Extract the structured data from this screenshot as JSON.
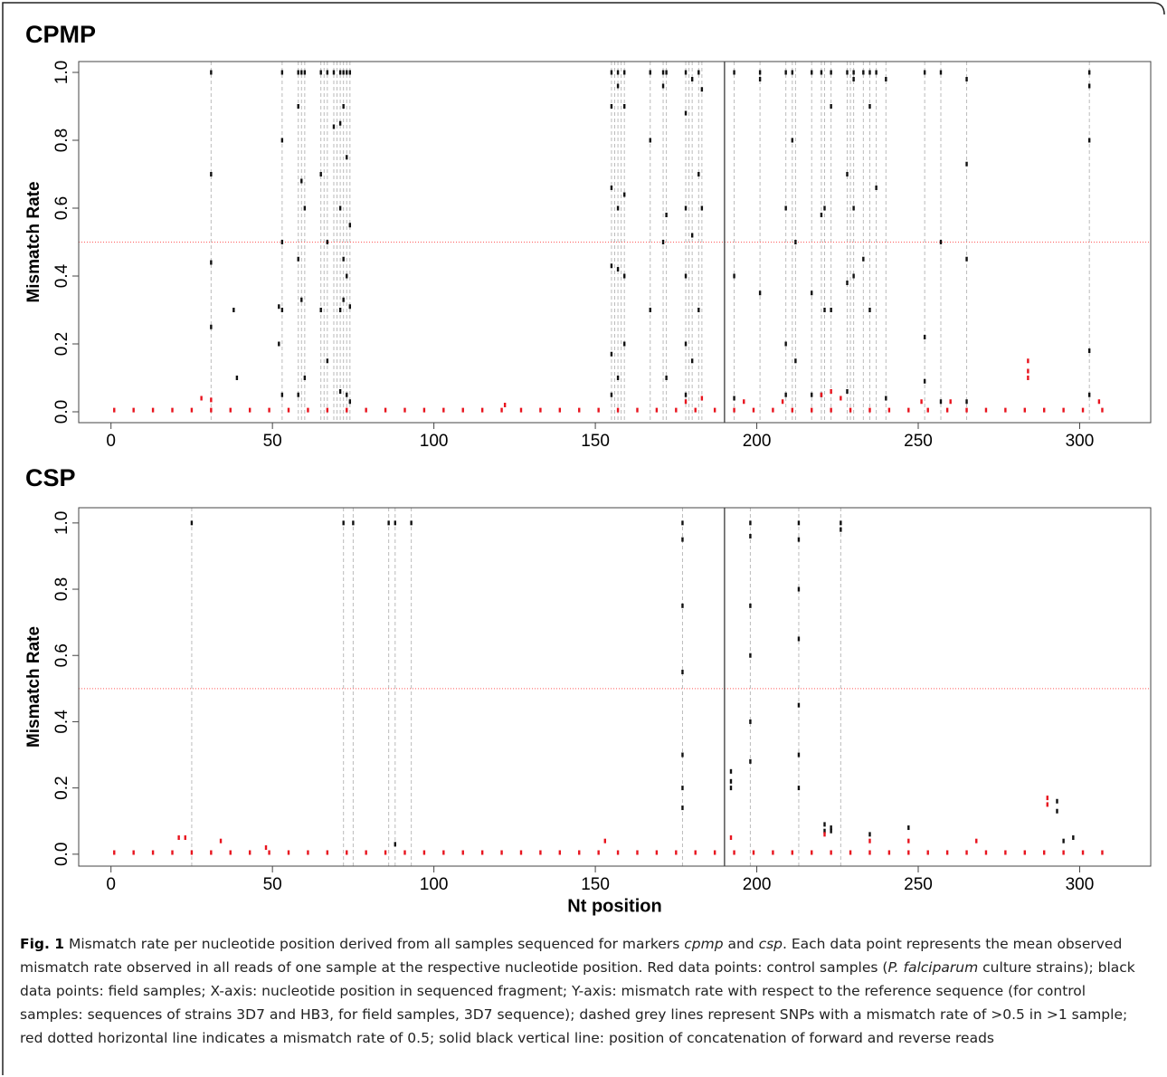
{
  "chart_data": [
    {
      "type": "scatter",
      "title": "CPMP",
      "ylabel": "Mismatch Rate",
      "xlim": [
        -10,
        322
      ],
      "ylim": [
        -0.032,
        1.032
      ],
      "xticks": [
        0,
        50,
        100,
        150,
        200,
        250,
        300
      ],
      "yticks": [
        {
          "value": 0,
          "label": "0.0"
        },
        {
          "value": 0.2,
          "label": "0.2"
        },
        {
          "value": 0.4,
          "label": "0.4"
        },
        {
          "value": 0.6,
          "label": "0.6"
        },
        {
          "value": 0.8,
          "label": "0.8"
        },
        {
          "value": 1,
          "label": "1.0"
        }
      ],
      "hline": {
        "value": 0.5,
        "color": "#ff5a5a"
      },
      "vline": {
        "value": 190,
        "color": "#555555"
      },
      "snp_x": [
        31,
        53,
        58,
        59,
        60,
        65,
        66,
        67,
        69,
        70,
        71,
        72,
        73,
        74,
        155,
        156,
        157,
        158,
        159,
        167,
        171,
        172,
        178,
        179,
        180,
        182,
        183,
        193,
        201,
        209,
        211,
        212,
        217,
        220,
        221,
        223,
        228,
        229,
        230,
        233,
        235,
        237,
        240,
        252,
        257,
        265,
        303
      ],
      "series": [
        {
          "color": "#111111",
          "x": [
            31,
            31,
            31,
            31,
            38,
            39,
            52,
            52,
            53,
            53,
            53,
            53,
            53,
            58,
            58,
            58,
            58,
            59,
            59,
            59,
            60,
            60,
            60,
            65,
            65,
            65,
            67,
            67,
            67,
            69,
            69,
            71,
            71,
            71,
            71,
            71,
            72,
            72,
            72,
            72,
            73,
            73,
            73,
            73,
            74,
            74,
            74,
            74,
            155,
            155,
            155,
            155,
            155,
            155,
            157,
            157,
            157,
            157,
            157,
            159,
            159,
            159,
            159,
            159,
            167,
            167,
            167,
            171,
            171,
            171,
            172,
            172,
            172,
            178,
            178,
            178,
            178,
            178,
            178,
            180,
            180,
            180,
            182,
            182,
            182,
            183,
            183,
            193,
            193,
            193,
            201,
            201,
            201,
            209,
            209,
            209,
            209,
            211,
            211,
            212,
            212,
            217,
            217,
            217,
            220,
            220,
            220,
            221,
            221,
            223,
            223,
            223,
            228,
            228,
            228,
            228,
            230,
            230,
            230,
            230,
            233,
            233,
            235,
            235,
            235,
            237,
            237,
            240,
            240,
            252,
            252,
            252,
            257,
            257,
            257,
            265,
            265,
            265,
            265,
            303,
            303,
            303,
            303,
            303
          ],
          "values": [
            1.0,
            0.7,
            0.44,
            0.25,
            0.3,
            0.1,
            0.31,
            0.2,
            1.0,
            0.8,
            0.5,
            0.3,
            0.05,
            1.0,
            0.9,
            0.45,
            0.05,
            1.0,
            0.68,
            0.33,
            1.0,
            0.6,
            0.1,
            1.0,
            0.7,
            0.3,
            1.0,
            0.5,
            0.15,
            1.0,
            0.84,
            1.0,
            0.85,
            0.6,
            0.3,
            0.06,
            1.0,
            0.9,
            0.45,
            0.33,
            1.0,
            0.75,
            0.4,
            0.05,
            1.0,
            0.55,
            0.31,
            0.03,
            1.0,
            0.9,
            0.66,
            0.43,
            0.17,
            0.05,
            1.0,
            0.96,
            0.6,
            0.42,
            0.1,
            1.0,
            0.9,
            0.64,
            0.4,
            0.2,
            1.0,
            0.8,
            0.3,
            1.0,
            0.96,
            0.5,
            1.0,
            0.58,
            0.1,
            1.0,
            0.88,
            0.6,
            0.4,
            0.2,
            0.05,
            0.98,
            0.52,
            0.15,
            1.0,
            0.7,
            0.3,
            0.95,
            0.6,
            1.0,
            0.4,
            0.04,
            1.0,
            0.98,
            0.35,
            1.0,
            0.6,
            0.2,
            0.05,
            1.0,
            0.8,
            0.5,
            0.15,
            1.0,
            0.35,
            0.05,
            1.0,
            0.58,
            0.05,
            0.6,
            0.3,
            1.0,
            0.9,
            0.3,
            1.0,
            0.7,
            0.38,
            0.06,
            1.0,
            0.98,
            0.6,
            0.4,
            1.0,
            0.45,
            1.0,
            0.9,
            0.3,
            1.0,
            0.66,
            0.98,
            0.04,
            1.0,
            0.22,
            0.09,
            1.0,
            0.5,
            0.03,
            0.98,
            0.73,
            0.45,
            0.03,
            1.0,
            0.96,
            0.8,
            0.18,
            0.05
          ]
        },
        {
          "color": "#e8141e",
          "x": [
            1,
            7,
            13,
            19,
            25,
            31,
            37,
            43,
            49,
            55,
            61,
            67,
            73,
            79,
            85,
            91,
            97,
            103,
            109,
            115,
            121,
            127,
            133,
            139,
            145,
            151,
            157,
            163,
            169,
            175,
            181,
            187,
            193,
            199,
            205,
            211,
            217,
            223,
            229,
            235,
            241,
            247,
            253,
            259,
            265,
            271,
            277,
            283,
            289,
            295,
            301,
            307,
            28,
            31,
            122,
            178,
            183,
            196,
            208,
            220,
            223,
            226,
            251,
            260,
            284,
            284,
            284,
            306
          ],
          "values": [
            0.005,
            0.005,
            0.005,
            0.005,
            0.005,
            0.005,
            0.005,
            0.005,
            0.005,
            0.005,
            0.005,
            0.005,
            0.005,
            0.005,
            0.005,
            0.005,
            0.005,
            0.005,
            0.005,
            0.005,
            0.005,
            0.005,
            0.005,
            0.005,
            0.005,
            0.005,
            0.005,
            0.005,
            0.005,
            0.005,
            0.005,
            0.005,
            0.005,
            0.005,
            0.005,
            0.005,
            0.005,
            0.005,
            0.005,
            0.005,
            0.005,
            0.005,
            0.005,
            0.005,
            0.005,
            0.005,
            0.005,
            0.005,
            0.005,
            0.005,
            0.005,
            0.005,
            0.04,
            0.035,
            0.02,
            0.03,
            0.04,
            0.03,
            0.03,
            0.05,
            0.06,
            0.04,
            0.03,
            0.03,
            0.15,
            0.12,
            0.1,
            0.03
          ]
        }
      ]
    },
    {
      "type": "scatter",
      "title": "CSP",
      "ylabel": "Mismatch Rate",
      "xlabel": "Nt position",
      "xlim": [
        -10,
        322
      ],
      "ylim": [
        -0.036,
        1.046
      ],
      "xticks": [
        0,
        50,
        100,
        150,
        200,
        250,
        300
      ],
      "yticks": [
        {
          "value": 0,
          "label": "0.0"
        },
        {
          "value": 0.2,
          "label": "0.2"
        },
        {
          "value": 0.4,
          "label": "0.4"
        },
        {
          "value": 0.6,
          "label": "0.6"
        },
        {
          "value": 0.8,
          "label": "0.8"
        },
        {
          "value": 1,
          "label": "1.0"
        }
      ],
      "hline": {
        "value": 0.5,
        "color": "#ff5a5a"
      },
      "vline": {
        "value": 190,
        "color": "#555555"
      },
      "snp_x": [
        25,
        72,
        75,
        86,
        88,
        93,
        177,
        198,
        213,
        226
      ],
      "series": [
        {
          "color": "#111111",
          "x": [
            25,
            72,
            75,
            86,
            88,
            88,
            93,
            177,
            177,
            177,
            177,
            177,
            177,
            177,
            192,
            192,
            192,
            198,
            198,
            198,
            198,
            198,
            198,
            213,
            213,
            213,
            213,
            213,
            213,
            213,
            221,
            221,
            223,
            223,
            226,
            226,
            235,
            247,
            293,
            293,
            295,
            298
          ],
          "values": [
            1.0,
            1.0,
            1.0,
            1.0,
            1.0,
            0.03,
            1.0,
            1.0,
            0.95,
            0.75,
            0.55,
            0.3,
            0.2,
            0.14,
            0.25,
            0.22,
            0.2,
            1.0,
            0.96,
            0.75,
            0.6,
            0.4,
            0.28,
            1.0,
            0.95,
            0.8,
            0.65,
            0.45,
            0.3,
            0.2,
            0.09,
            0.07,
            0.08,
            0.07,
            1.0,
            0.98,
            0.06,
            0.08,
            0.16,
            0.13,
            0.04,
            0.05
          ]
        },
        {
          "color": "#e8141e",
          "x": [
            1,
            7,
            13,
            19,
            25,
            31,
            37,
            43,
            49,
            55,
            61,
            67,
            73,
            79,
            85,
            91,
            97,
            103,
            109,
            115,
            121,
            127,
            133,
            139,
            145,
            151,
            157,
            163,
            169,
            175,
            181,
            187,
            193,
            199,
            205,
            211,
            217,
            223,
            229,
            235,
            241,
            247,
            253,
            259,
            265,
            271,
            277,
            283,
            289,
            295,
            301,
            307,
            21,
            23,
            34,
            48,
            153,
            192,
            221,
            235,
            247,
            268,
            290,
            290
          ],
          "values": [
            0.005,
            0.005,
            0.005,
            0.005,
            0.005,
            0.005,
            0.005,
            0.005,
            0.005,
            0.005,
            0.005,
            0.005,
            0.005,
            0.005,
            0.005,
            0.005,
            0.005,
            0.005,
            0.005,
            0.005,
            0.005,
            0.005,
            0.005,
            0.005,
            0.005,
            0.005,
            0.005,
            0.005,
            0.005,
            0.005,
            0.005,
            0.005,
            0.005,
            0.005,
            0.005,
            0.005,
            0.005,
            0.005,
            0.005,
            0.005,
            0.005,
            0.005,
            0.005,
            0.005,
            0.005,
            0.005,
            0.005,
            0.005,
            0.005,
            0.005,
            0.005,
            0.005,
            0.05,
            0.05,
            0.04,
            0.02,
            0.04,
            0.05,
            0.06,
            0.04,
            0.04,
            0.04,
            0.17,
            0.15
          ]
        }
      ]
    }
  ],
  "caption": {
    "label": "Fig. 1",
    "parts": [
      " Mismatch rate per nucleotide position derived from all samples sequenced for markers ",
      "cpmp",
      " and ",
      "csp",
      ". Each data point represents the mean observed mismatch rate observed in all reads of one sample at the respective nucleotide position. Red data points: control samples (",
      "P. falciparum",
      " culture strains); black data points: field samples; X-axis: nucleotide position in sequenced fragment; Y-axis: mismatch rate with respect to the reference sequence (for control samples: sequences of strains 3D7 and HB3, for field samples, 3D7 sequence); dashed grey lines represent SNPs with a mismatch rate of >0.5 in >1 sample; red dotted horizontal line indicates a mismatch rate of 0.5; solid black vertical line: position of concatenation of forward and reverse reads"
    ]
  }
}
